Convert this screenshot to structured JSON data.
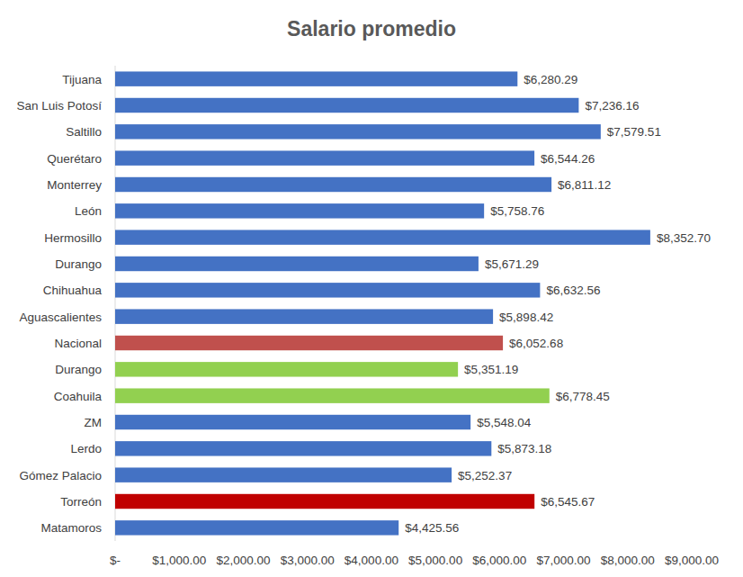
{
  "chart_data": {
    "type": "bar",
    "title": "Salario promedio",
    "orientation": "horizontal",
    "categories": [
      "Tijuana",
      "San Luis Potosí",
      "Saltillo",
      "Querétaro",
      "Monterrey",
      "León",
      "Hermosillo",
      "Durango",
      "Chihuahua",
      "Aguascalientes",
      "Nacional",
      "Durango",
      "Coahuila",
      "ZM",
      "Lerdo",
      "Gómez Palacio",
      "Torreón",
      "Matamoros"
    ],
    "values": [
      6280.29,
      7236.16,
      7579.51,
      6544.26,
      6811.12,
      5758.76,
      8352.7,
      5671.29,
      6632.56,
      5898.42,
      6052.68,
      5351.19,
      6778.45,
      5548.04,
      5873.18,
      5252.37,
      6545.67,
      4425.56
    ],
    "value_labels": [
      "$6,280.29",
      "$7,236.16",
      "$7,579.51",
      "$6,544.26",
      "$6,811.12",
      "$5,758.76",
      "$8,352.70",
      "$5,671.29",
      "$6,632.56",
      "$5,898.42",
      "$6,052.68",
      "$5,351.19",
      "$6,778.45",
      "$5,548.04",
      "$5,873.18",
      "$5,252.37",
      "$6,545.67",
      "$4,425.56"
    ],
    "colors": [
      "#4472c4",
      "#4472c4",
      "#4472c4",
      "#4472c4",
      "#4472c4",
      "#4472c4",
      "#4472c4",
      "#4472c4",
      "#4472c4",
      "#4472c4",
      "#c0504d",
      "#92d050",
      "#92d050",
      "#4472c4",
      "#4472c4",
      "#4472c4",
      "#c00000",
      "#4472c4"
    ],
    "xlim": [
      0,
      9000
    ],
    "xticks": [
      {
        "value": 0,
        "label": "$-"
      },
      {
        "value": 1000,
        "label": "$1,000.00"
      },
      {
        "value": 2000,
        "label": "$2,000.00"
      },
      {
        "value": 3000,
        "label": "$3,000.00"
      },
      {
        "value": 4000,
        "label": "$4,000.00"
      },
      {
        "value": 5000,
        "label": "$5,000.00"
      },
      {
        "value": 6000,
        "label": "$6,000.00"
      },
      {
        "value": 7000,
        "label": "$7,000.00"
      },
      {
        "value": 8000,
        "label": "$8,000.00"
      },
      {
        "value": 9000,
        "label": "$9,000.00"
      }
    ],
    "data_labels": true,
    "grid": false
  }
}
